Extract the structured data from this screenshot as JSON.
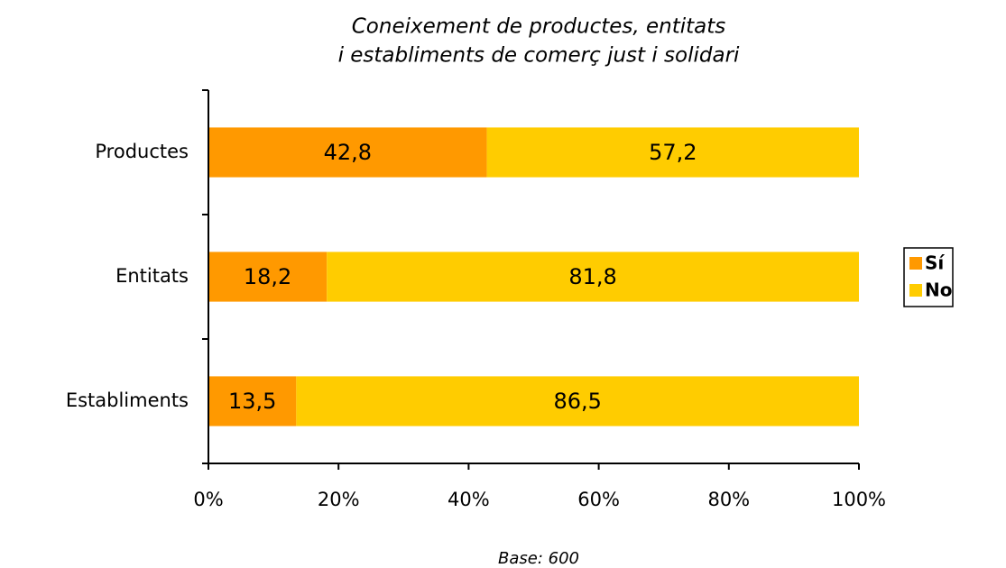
{
  "chart_data": {
    "type": "stacked_barh",
    "title": [
      "Coneixement de productes, entitats",
      "i establiments de comerç just i solidari"
    ],
    "categories": [
      "Productes",
      "Entitats",
      "Establiments"
    ],
    "series": [
      {
        "name": "Sí",
        "color": "#FF9900",
        "values": [
          42.8,
          18.2,
          13.5
        ],
        "value_labels": [
          "42,8",
          "18,2",
          "13,5"
        ]
      },
      {
        "name": "No",
        "color": "#FFCC00",
        "values": [
          57.2,
          81.8,
          86.5
        ],
        "value_labels": [
          "57,2",
          "81,8",
          "86,5"
        ]
      }
    ],
    "xlim": [
      0,
      100
    ],
    "xticks": [
      {
        "value": 0,
        "label": "0%"
      },
      {
        "value": 20,
        "label": "20%"
      },
      {
        "value": 40,
        "label": "40%"
      },
      {
        "value": 60,
        "label": "60%"
      },
      {
        "value": 80,
        "label": "80%"
      },
      {
        "value": 100,
        "label": "100%"
      }
    ],
    "legend": "right",
    "annotation": "Base: 600"
  }
}
